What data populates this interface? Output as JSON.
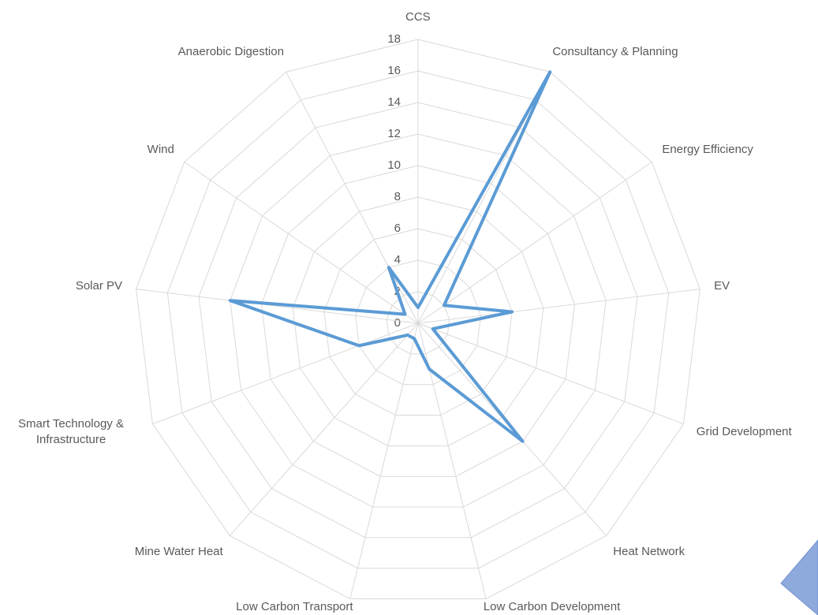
{
  "chart_data": {
    "type": "radar",
    "categories": [
      "CCS",
      "Consultancy & Planning",
      "Energy Efficiency",
      "EV",
      "Grid Development",
      "Heat Network",
      "Low Carbon Development",
      "Low Carbon Transport",
      "Mine Water Heat",
      "Smart Technology & Infrastructure",
      "Solar PV",
      "Wind",
      "Anaerobic Digestion"
    ],
    "values": [
      1,
      18,
      2,
      6,
      1,
      10,
      3,
      1,
      1,
      4,
      12,
      1,
      4
    ],
    "color": "#5b9bd5",
    "rlim": [
      0,
      18
    ],
    "rticks": [
      0,
      2,
      4,
      6,
      8,
      10,
      12,
      14,
      16,
      18
    ],
    "grid": true
  }
}
